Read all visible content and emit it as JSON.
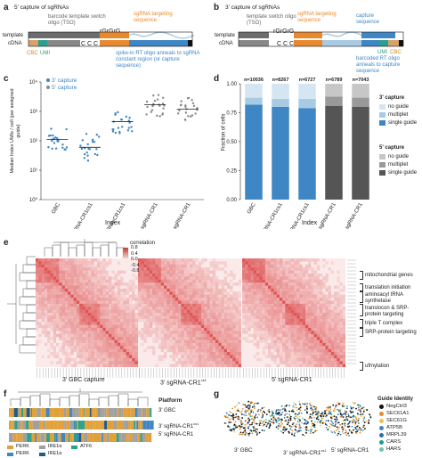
{
  "panels": {
    "a": {
      "letter": "a",
      "title": "5' capture of sgRNAs",
      "barcode_note": "barcode template switch oligo (TSO)",
      "sgrna_note": "sgRNA targeting sequence",
      "rgrgrg": "rGrGrG",
      "template": "template",
      "cdna": "cDNA",
      "five": "5'",
      "three": "3'",
      "ccc": "C C C",
      "cbc": "CBC",
      "umi": "UMI",
      "spike": "spike-in RT oligo anneals to sgRNA constant region (or capture sequence)"
    },
    "b": {
      "letter": "b",
      "title": "3' capture of sgRNAs",
      "tso_note": "template switch oligo (TSO)",
      "sgrna_note": "sgRNA targeting sequence",
      "capture_note": "capture sequence",
      "rgrgrg": "rGrGrG",
      "template": "template",
      "cdna": "cDNA",
      "five": "5'",
      "three": "3'",
      "ccc": "C C C",
      "umi": "UMI",
      "cbc": "CBC",
      "barcoded": "barcoded RT oligo anneals to capture sequence"
    },
    "c": {
      "letter": "c",
      "xlabel": "Index",
      "ylabel": "Median Index UMIs / cell (per assigned guide)",
      "legend": [
        "3' capture",
        "5' capture"
      ]
    },
    "d": {
      "letter": "d",
      "xlabel": "Index",
      "ylabel": "Fraction of cells",
      "legend3_title": "3' capture",
      "legend5_title": "5' capture",
      "legend_items": [
        "no guide",
        "multiplet",
        "single guide"
      ]
    },
    "e": {
      "letter": "e",
      "colorbar_title": "correlation",
      "colorbar_ticks": [
        "0.8",
        "0.4",
        "0.0",
        "-0.4",
        "-0.8"
      ],
      "panel_titles": [
        "3' GBC capture",
        "3' sgRNA-CR1",
        "5' sgRNA-CR1"
      ],
      "panel_title_sup": "cs1",
      "annotations": [
        "mitochondrial genes",
        "translation initiation",
        "aminoacyl tRNA synthetase",
        "translocon & SRP-protein targeting",
        "triple T complex",
        "SRP-protein targeting",
        "ufmylation"
      ]
    },
    "f": {
      "letter": "f",
      "title": "Platform",
      "rows": [
        "3' GBC",
        "3' sgRNA-CR1",
        "5' sgRNA-CR1"
      ],
      "row_sup": "cs1",
      "legend": [
        "PERK",
        "IRE1α",
        "ATF6",
        "PERK",
        "IRE1α"
      ]
    },
    "g": {
      "letter": "g",
      "labels": [
        "3' GBC",
        "3' sgRNA-CR1",
        "5' sgRNA-CR1"
      ],
      "label_sup": "cs1",
      "legend_title": "Guide Identity",
      "legend": [
        "NegCtrl3",
        "SEC61A1",
        "SEC61G",
        "ATP5B",
        "MRPL39",
        "CARS",
        "HARS"
      ]
    }
  },
  "colors": {
    "blue": "#3f86c4",
    "light_blue": "#a8cbe3",
    "orange": "#e8892f",
    "gray": "#6d6d6d",
    "teal": "#2aa18b",
    "tan": "#d8a36a",
    "black": "#111111",
    "heat": "#e06a6a"
  },
  "chart_data": [
    {
      "type": "scatter",
      "panel": "c",
      "xlabel": "Index",
      "ylabel": "Median Index UMIs / cell (per assigned guide)",
      "yscale": "log",
      "ylim": [
        1,
        10000
      ],
      "categories": [
        "GBC",
        "sgRNA-CR1cs1",
        "sgRNA-CR1cs1",
        "sgRNA-CR1",
        "sgRNA-CR1"
      ],
      "series": [
        {
          "name": "3' capture",
          "color": "#3f86c4",
          "medians": [
            110,
            60,
            450,
            null,
            null
          ]
        },
        {
          "name": "5' capture",
          "color": "#888888",
          "medians": [
            null,
            null,
            null,
            1700,
            1200
          ]
        }
      ]
    },
    {
      "type": "bar",
      "panel": "d",
      "xlabel": "Index",
      "ylabel": "Fraction of cells",
      "ylim": [
        0,
        1
      ],
      "categories": [
        "GBC",
        "sgRNA-CR1cs1",
        "sgRNA-CR1cs1",
        "sgRNA-CR1",
        "sgRNA-CR1"
      ],
      "n_labels": [
        "n=10036",
        "n=8267",
        "n=6727",
        "n=6789",
        "n=7043"
      ],
      "series": [
        {
          "name": "single guide",
          "values": [
            0.82,
            0.8,
            0.79,
            0.81,
            0.8
          ]
        },
        {
          "name": "multiplet",
          "values": [
            0.06,
            0.07,
            0.08,
            0.08,
            0.08
          ]
        },
        {
          "name": "no guide",
          "values": [
            0.12,
            0.13,
            0.13,
            0.11,
            0.12
          ]
        }
      ]
    }
  ]
}
